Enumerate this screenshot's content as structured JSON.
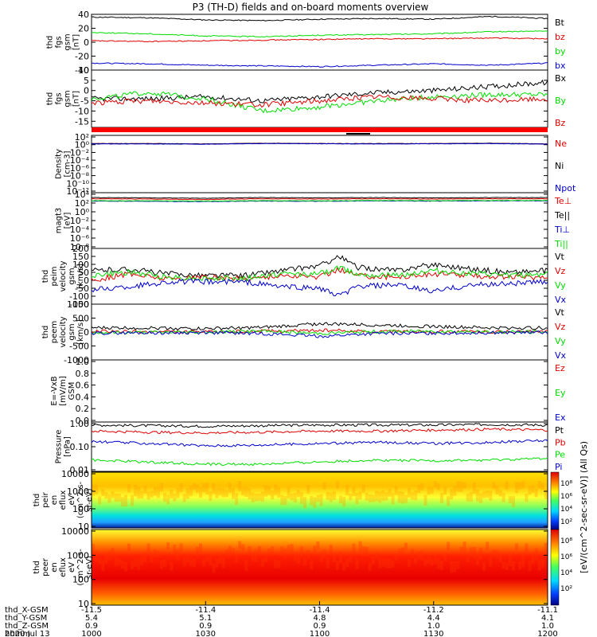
{
  "title": "P3 (TH-D) fields and on-board moments overview",
  "colors": {
    "black": "#000000",
    "red": "#e00000",
    "green": "#00dd00",
    "blue": "#0000cc"
  },
  "chart_data": [
    {
      "id": "fgs_gsm_mag",
      "type": "line",
      "ylabel": [
        "thd",
        "fgs",
        "gsm",
        "[nT]"
      ],
      "ylim": [
        -40,
        40
      ],
      "yticks": [
        40,
        20,
        0,
        -20,
        -40
      ],
      "x": [
        0,
        15,
        30,
        45,
        60,
        75,
        90,
        105,
        120
      ],
      "series": [
        {
          "name": "Bt",
          "color": "#000000",
          "values": [
            36,
            35,
            32,
            31,
            33,
            34,
            33,
            37,
            34
          ]
        },
        {
          "name": "bz",
          "color": "#e00000",
          "values": [
            2,
            1,
            2,
            3,
            4,
            5,
            5,
            6,
            5
          ]
        },
        {
          "name": "by",
          "color": "#00dd00",
          "values": [
            14,
            12,
            9,
            8,
            10,
            11,
            12,
            15,
            16
          ]
        },
        {
          "name": "bx",
          "color": "#0000cc",
          "values": [
            -30,
            -31,
            -33,
            -34,
            -35,
            -33,
            -31,
            -33,
            -30
          ]
        }
      ]
    },
    {
      "id": "fgs_gsm_components",
      "type": "line",
      "ylabel": [
        "thd",
        "fgs",
        "gsm",
        "[nT]"
      ],
      "ylim": [
        -18,
        10
      ],
      "yticks": [
        10,
        5,
        0,
        -5,
        -10,
        -15
      ],
      "x": [
        0,
        15,
        30,
        45,
        60,
        75,
        90,
        105,
        120
      ],
      "series": [
        {
          "name": "Bx",
          "color": "#000000",
          "values": [
            -4,
            -4,
            -3,
            -5,
            -3,
            -1,
            0,
            2,
            4
          ]
        },
        {
          "name": "By",
          "color": "#00dd00",
          "values": [
            -4,
            -1,
            -4,
            -10,
            -8,
            -5,
            -3,
            -2,
            -2
          ]
        },
        {
          "name": "Bz",
          "color": "#e00000",
          "values": [
            -6,
            -5,
            -6,
            -7,
            -5,
            -3,
            -4,
            -5,
            -4
          ]
        }
      ]
    },
    {
      "id": "density",
      "type": "line",
      "yscale": "log",
      "ylabel": [
        "Density",
        "[cm-3]"
      ],
      "ylim": [
        1e-14,
        100
      ],
      "yticks": [
        "10²",
        "10⁰",
        "10⁻²",
        "10⁻⁴",
        "10⁻⁶",
        "10⁻⁸",
        "10⁻¹⁰",
        "10⁻¹²"
      ],
      "x": [
        0,
        15,
        30,
        45,
        60,
        75,
        90,
        105,
        120
      ],
      "series": [
        {
          "name": "Ne",
          "color": "#e00000",
          "values": [
            0.5,
            0.5,
            0.4,
            0.6,
            0.5,
            0.5,
            0.5,
            0.6,
            0.4
          ]
        },
        {
          "name": "Ni",
          "color": "#000000",
          "values": [
            0.5,
            0.5,
            0.4,
            0.6,
            0.5,
            0.5,
            0.5,
            0.6,
            0.4
          ]
        },
        {
          "name": "Npot",
          "color": "#0000cc",
          "values": [
            0.4,
            0.4,
            0.35,
            0.5,
            0.45,
            0.4,
            0.45,
            0.5,
            0.35
          ]
        }
      ]
    },
    {
      "id": "temperature",
      "type": "line",
      "yscale": "log",
      "ylabel": [
        "magt3",
        "[eV]"
      ],
      "ylim": [
        1e-10,
        10000
      ],
      "yticks": [
        "10⁴",
        "10²",
        "10⁰",
        "10⁻²",
        "10⁻⁴",
        "10⁻⁶",
        "10⁻⁸"
      ],
      "x": [
        0,
        15,
        30,
        45,
        60,
        75,
        90,
        105,
        120
      ],
      "series": [
        {
          "name": "Te⊥",
          "color": "#e00000",
          "values": [
            300,
            250,
            200,
            300,
            250,
            300,
            250,
            300,
            300
          ]
        },
        {
          "name": "Te||",
          "color": "#000000",
          "values": [
            600,
            500,
            400,
            600,
            500,
            600,
            500,
            600,
            600
          ]
        },
        {
          "name": "Ti⊥",
          "color": "#0000cc",
          "values": [
            80,
            70,
            60,
            80,
            70,
            90,
            80,
            90,
            90
          ]
        },
        {
          "name": "Ti||",
          "color": "#00dd00",
          "values": [
            100,
            90,
            80,
            100,
            90,
            110,
            100,
            110,
            110
          ]
        }
      ]
    },
    {
      "id": "ion_velocity",
      "type": "line",
      "ylabel": [
        "thd",
        "peim",
        "velocity",
        "gsm",
        "[km/s]"
      ],
      "ylim": [
        -150,
        200
      ],
      "yticks": [
        200,
        150,
        100,
        50,
        0,
        -50,
        -100,
        -150
      ],
      "x": [
        0,
        10,
        20,
        30,
        40,
        50,
        60,
        65,
        70,
        80,
        90,
        100,
        110,
        120
      ],
      "series": [
        {
          "name": "Vt",
          "color": "#000000",
          "values": [
            60,
            70,
            40,
            30,
            30,
            60,
            90,
            150,
            80,
            60,
            100,
            70,
            50,
            60
          ]
        },
        {
          "name": "Vz",
          "color": "#e00000",
          "values": [
            0,
            40,
            10,
            20,
            10,
            30,
            20,
            70,
            30,
            20,
            40,
            30,
            20,
            20
          ]
        },
        {
          "name": "Vy",
          "color": "#00dd00",
          "values": [
            30,
            50,
            20,
            10,
            10,
            40,
            40,
            80,
            40,
            30,
            60,
            40,
            30,
            40
          ]
        },
        {
          "name": "Vx",
          "color": "#0000cc",
          "values": [
            -60,
            -40,
            -10,
            -10,
            -10,
            -40,
            -50,
            -100,
            -40,
            -30,
            -70,
            -30,
            -20,
            -10
          ]
        }
      ]
    },
    {
      "id": "electron_velocity",
      "type": "line",
      "ylabel": [
        "thd",
        "peem",
        "velocity",
        "gsm",
        "[km/s]"
      ],
      "ylim": [
        -1000,
        1000
      ],
      "yticks": [
        1000,
        500,
        0,
        -500,
        -1000
      ],
      "x": [
        0,
        15,
        30,
        45,
        60,
        75,
        90,
        105,
        120
      ],
      "series": [
        {
          "name": "Vt",
          "color": "#000000",
          "values": [
            150,
            150,
            120,
            160,
            300,
            250,
            200,
            150,
            150
          ]
        },
        {
          "name": "Vz",
          "color": "#e00000",
          "values": [
            20,
            10,
            0,
            30,
            60,
            20,
            20,
            10,
            10
          ]
        },
        {
          "name": "Vy",
          "color": "#00dd00",
          "values": [
            -20,
            -10,
            0,
            30,
            -50,
            20,
            30,
            0,
            10
          ]
        },
        {
          "name": "Vx",
          "color": "#0000cc",
          "values": [
            -40,
            -30,
            -20,
            -50,
            -150,
            -50,
            -40,
            -20,
            -20
          ]
        }
      ]
    },
    {
      "id": "efield",
      "type": "line",
      "ylabel": [
        "E=-VxB",
        "[mV/m]",
        "GSM"
      ],
      "ylim": [
        0,
        1
      ],
      "yticks": [
        "1.0",
        "0.8",
        "0.6",
        "0.4",
        "0.2",
        "0.0"
      ],
      "legend": [
        {
          "name": "Ez",
          "color": "#e00000"
        },
        {
          "name": "Ey",
          "color": "#00dd00"
        },
        {
          "name": "Ex",
          "color": "#0000cc"
        }
      ],
      "series": []
    },
    {
      "id": "pressure",
      "type": "line",
      "yscale": "log",
      "ylabel": [
        "Pressure",
        "[nPa]"
      ],
      "ylim": [
        0.01,
        1.2
      ],
      "yticks": [
        "1.00",
        "0.10",
        "0.01"
      ],
      "x": [
        0,
        15,
        30,
        45,
        60,
        75,
        90,
        105,
        120
      ],
      "series": [
        {
          "name": "Pt",
          "color": "#000000",
          "values": [
            0.9,
            0.85,
            0.8,
            0.85,
            0.9,
            0.9,
            0.9,
            0.95,
            0.9
          ]
        },
        {
          "name": "Pb",
          "color": "#e00000",
          "values": [
            0.5,
            0.45,
            0.42,
            0.45,
            0.5,
            0.5,
            0.55,
            0.6,
            0.55
          ]
        },
        {
          "name": "Pe",
          "color": "#00dd00",
          "values": [
            0.03,
            0.025,
            0.02,
            0.02,
            0.025,
            0.03,
            0.028,
            0.03,
            0.035
          ]
        },
        {
          "name": "Pi",
          "color": "#0000cc",
          "values": [
            0.18,
            0.15,
            0.12,
            0.13,
            0.15,
            0.17,
            0.15,
            0.17,
            0.2
          ]
        }
      ]
    },
    {
      "id": "ion_spectrogram",
      "type": "heatmap",
      "ylabel": [
        "thd",
        "peir",
        "en",
        "eflux",
        "eV",
        "(cm^2-s-",
        "sr-eV)"
      ],
      "yscale": "log",
      "ylim": [
        7,
        20000
      ],
      "yticks": [
        "10000",
        "1000",
        "100",
        "10"
      ]
    },
    {
      "id": "electron_spectrogram",
      "type": "heatmap",
      "ylabel": [
        "thd",
        "peer",
        "en",
        "eflux",
        "eV",
        "(cm^2-s-",
        "sr-eV)"
      ],
      "yscale": "log",
      "ylim": [
        7,
        20000
      ],
      "yticks": [
        "10000",
        "1000",
        "100",
        "10"
      ]
    }
  ],
  "colorbar": {
    "label": "[eV/(cm^2-sec-sr-eV)]  (All Qs)",
    "ticks_upper": [
      "10⁸",
      "10⁶",
      "10⁴",
      "10²"
    ],
    "ticks_lower": [
      "10⁸",
      "10⁶",
      "10⁴",
      "10²"
    ]
  },
  "x_axis": {
    "rows": [
      {
        "label": "thd_X-GSM",
        "values": [
          "-11.5",
          "-11.4",
          "-11.4",
          "-11.2",
          "-11.1"
        ]
      },
      {
        "label": "thd_Y-GSM",
        "values": [
          "5.4",
          "5.1",
          "4.8",
          "4.4",
          "4.1"
        ]
      },
      {
        "label": "thd_Z-GSM",
        "values": [
          "0.9",
          "0.9",
          "0.9",
          "1.0",
          "1.0"
        ]
      },
      {
        "label": "hhmm",
        "values": [
          "1000",
          "1030",
          "1100",
          "1130",
          "1200"
        ]
      }
    ],
    "date": "2020 Jul 13"
  }
}
